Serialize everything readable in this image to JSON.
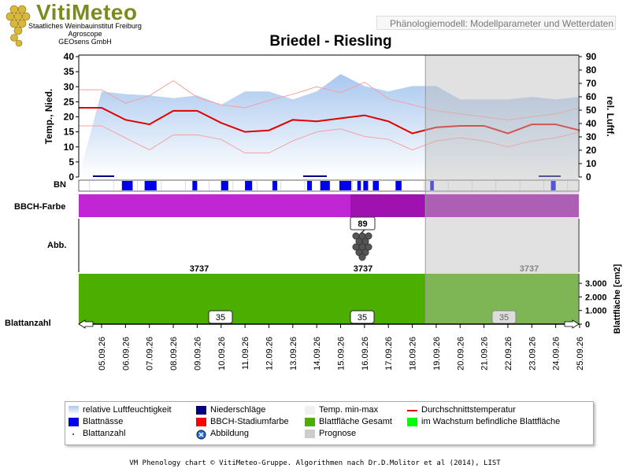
{
  "header": {
    "brand": "VitiMeteo",
    "org_lines": [
      "Staatliches Weinbauinstitut Freiburg",
      "Agroscope",
      "GEOsens GmbH"
    ],
    "model_label": "Phänologiemodell: Modellparameter und Wetterdaten"
  },
  "colors": {
    "humidity": "#a9c8ef",
    "precip": "#000080",
    "temp_minmax": "#f5a0a0",
    "avg_temp": "#e00000",
    "leaf_wet": "#0000ee",
    "bbch": "#c026d3",
    "bbch_dark": "#a012b0",
    "leaf_area": "#4caf00",
    "growing": "#00ff00",
    "prognosis": "#cccccc"
  },
  "row_labels": {
    "bn": "BN",
    "bbch": "BBCH-Farbe",
    "abb": "Abb.",
    "blattanzahl": "Blattanzahl"
  },
  "chart_data": {
    "type": "line",
    "title": "Briedel - Riesling",
    "x": [
      "05.09.26",
      "06.09.26",
      "07.09.26",
      "08.09.26",
      "09.09.26",
      "10.09.26",
      "11.09.26",
      "12.09.26",
      "13.09.26",
      "14.09.26",
      "15.09.26",
      "16.09.26",
      "17.09.26",
      "18.09.26",
      "19.09.26",
      "20.09.26",
      "21.09.26",
      "22.09.26",
      "23.09.26",
      "24.09.26",
      "25.09.26"
    ],
    "y_left": {
      "label": "Temp., Nied.",
      "range": [
        0,
        40
      ],
      "ticks": [
        0,
        5,
        10,
        15,
        20,
        25,
        30,
        35,
        40
      ]
    },
    "y_right": {
      "label": "rel. Luftf.",
      "range": [
        0,
        90
      ],
      "ticks": [
        0,
        10,
        20,
        30,
        40,
        50,
        60,
        70,
        80,
        90
      ]
    },
    "series": [
      {
        "name": "relative Luftfeuchtigkeit",
        "axis": "right",
        "values": [
          64,
          62,
          61,
          59,
          61,
          54,
          64,
          64,
          58,
          64,
          77,
          68,
          64,
          68,
          68,
          58,
          58,
          58,
          60,
          58,
          60
        ]
      },
      {
        "name": "Temp. max",
        "axis": "left",
        "values": [
          29,
          24.5,
          27,
          32,
          26.5,
          24,
          23,
          25.5,
          27.5,
          30,
          28,
          31.5,
          26,
          24,
          22,
          21,
          20,
          19,
          20,
          21,
          23
        ]
      },
      {
        "name": "Temp. min",
        "axis": "left",
        "values": [
          17,
          13,
          9,
          14,
          14,
          12.5,
          8,
          8,
          12,
          15,
          16,
          13.5,
          12.5,
          9,
          12,
          13,
          12,
          10,
          12,
          13,
          15
        ]
      },
      {
        "name": "Durchschnittstemperatur",
        "axis": "left",
        "values": [
          23,
          19,
          17.5,
          22,
          22,
          18,
          15,
          15.5,
          19,
          18.5,
          19.5,
          20.5,
          18.5,
          14.5,
          16.5,
          17,
          17,
          14.5,
          17.5,
          17.5,
          15.5
        ]
      }
    ],
    "blattnaesse_intervals": [
      [
        5.85,
        6.3
      ],
      [
        6.8,
        7.3
      ],
      [
        8.8,
        9.0
      ],
      [
        10.0,
        10.3
      ],
      [
        11.0,
        11.3
      ],
      [
        12.15,
        12.35
      ],
      [
        13.6,
        13.8
      ],
      [
        14.15,
        14.55
      ],
      [
        14.95,
        15.45
      ],
      [
        15.7,
        15.85
      ],
      [
        15.95,
        16.15
      ],
      [
        16.35,
        16.6
      ],
      [
        17.3,
        17.55
      ],
      [
        18.75,
        18.9
      ],
      [
        23.8,
        24.0
      ]
    ],
    "bbch_stage_value": "89",
    "leaf_area_labels": [
      "3737",
      "3737",
      "3737"
    ],
    "leaf_area_axis": {
      "label": "Blattfläche [cm2]",
      "ticks": [
        "0",
        "1.000",
        "2.000",
        "3.000"
      ]
    },
    "leaf_count_labels": [
      "35",
      "35",
      "35"
    ],
    "prognosis_start": "19.09.26"
  },
  "legend": [
    {
      "label": "relative Luftfeuchtigkeit",
      "symbol": "humidity"
    },
    {
      "label": "Niederschläge",
      "symbol": "precip"
    },
    {
      "label": "Temp. min-max",
      "symbol": "minmax"
    },
    {
      "label": "Durchschnittstemperatur",
      "symbol": "avgline"
    },
    {
      "label": "Blattnässe",
      "symbol": "leafwet"
    },
    {
      "label": "BBCH-Stadiumfarbe",
      "symbol": "bbch"
    },
    {
      "label": "Blattfläche Gesamt",
      "symbol": "leafarea"
    },
    {
      "label": "im Wachstum befindliche Blattfläche",
      "symbol": "growing"
    },
    {
      "label": "Blattanzahl",
      "symbol": "dot"
    },
    {
      "label": "Abbildung",
      "symbol": "abb"
    },
    {
      "label": "Prognose",
      "symbol": "prognosis"
    }
  ],
  "footer": "VM Phenology chart © VitiMeteo-Gruppe. Algorithmen nach Dr.D.Molitor et al (2014), LIST"
}
